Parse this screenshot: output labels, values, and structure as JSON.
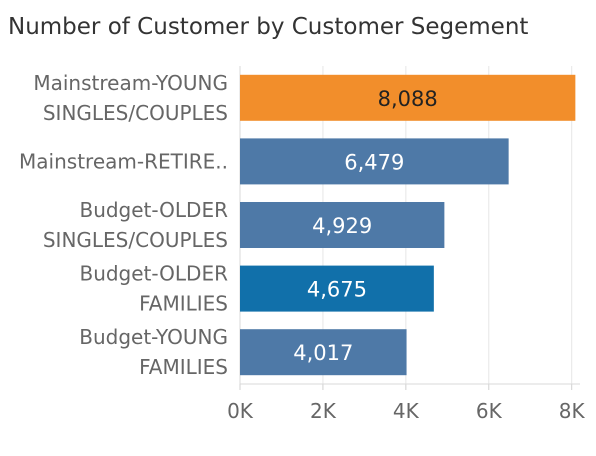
{
  "chart_data": {
    "type": "bar",
    "orientation": "horizontal",
    "title": "Number of Customer by Customer Segement",
    "categories": [
      [
        "Mainstream-YOUNG",
        "SINGLES/COUPLES"
      ],
      [
        "Mainstream-RETIRE.."
      ],
      [
        "Budget-OLDER",
        "SINGLES/COUPLES"
      ],
      [
        "Budget-OLDER",
        "FAMILIES"
      ],
      [
        "Budget-YOUNG",
        "FAMILIES"
      ]
    ],
    "values": [
      8088,
      6479,
      4929,
      4675,
      4017
    ],
    "value_labels": [
      "8,088",
      "6,479",
      "4,929",
      "4,675",
      "4,017"
    ],
    "bar_colors": [
      "#F28E2B",
      "#4E79A7",
      "#4E79A7",
      "#1170AA",
      "#4E79A7"
    ],
    "value_label_colors": [
      "#222222",
      "#ffffff",
      "#ffffff",
      "#ffffff",
      "#ffffff"
    ],
    "xlim": [
      0,
      8200
    ],
    "xticks": [
      0,
      2000,
      4000,
      6000,
      8000
    ],
    "xtick_labels": [
      "0K",
      "2K",
      "4K",
      "6K",
      "8K"
    ],
    "grid": true,
    "xlabel": "",
    "ylabel": ""
  }
}
